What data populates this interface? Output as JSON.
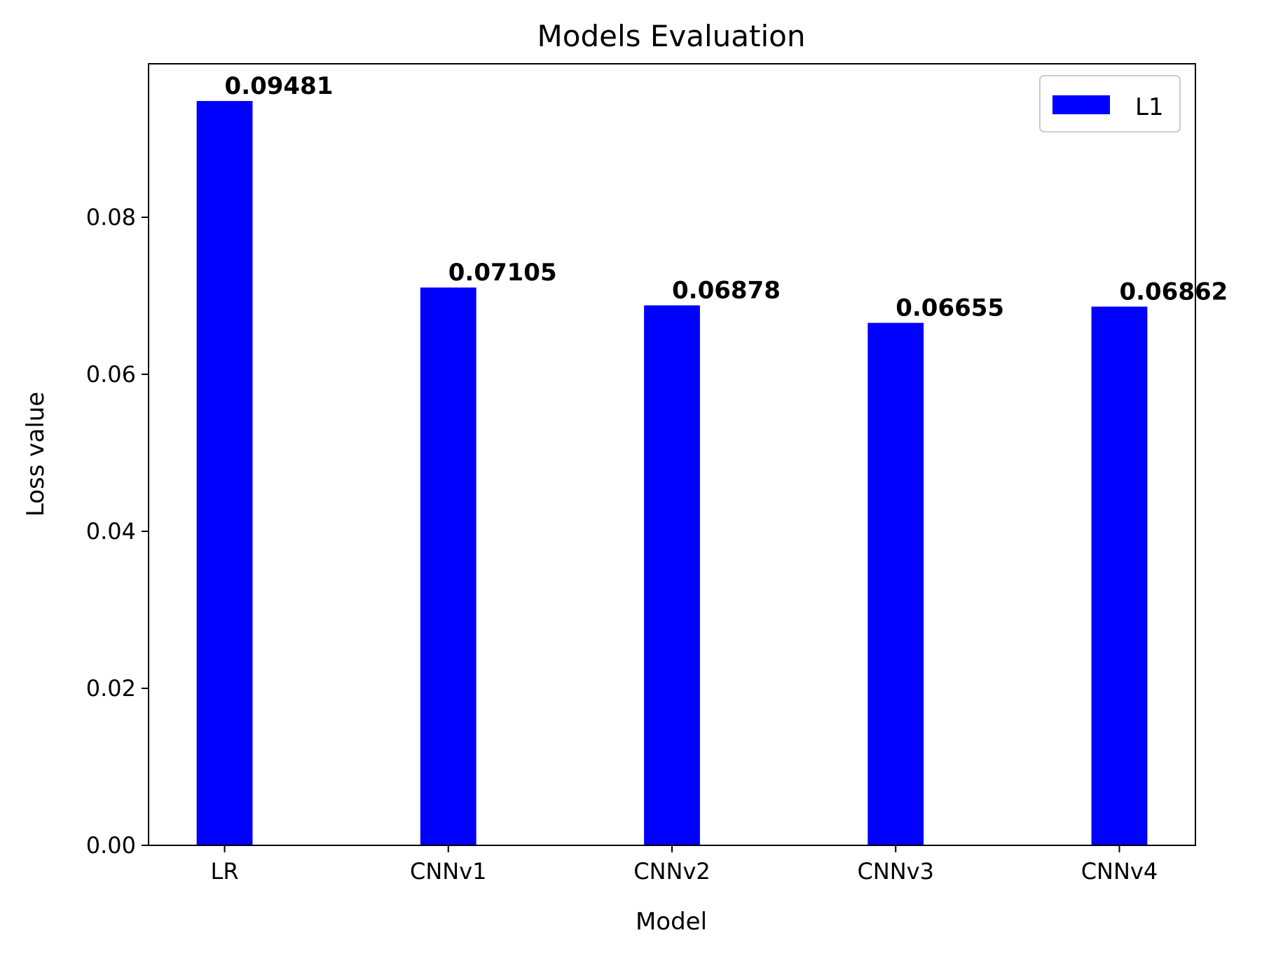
{
  "chart_data": {
    "type": "bar",
    "title": "Models Evaluation",
    "xlabel": "Model",
    "ylabel": "Loss value",
    "categories": [
      "LR",
      "CNNv1",
      "CNNv2",
      "CNNv3",
      "CNNv4"
    ],
    "series": [
      {
        "name": "L1",
        "color": "#0000ff",
        "values": [
          0.09481,
          0.07105,
          0.06878,
          0.06655,
          0.06862
        ]
      }
    ],
    "data_labels": [
      "0.09481",
      "0.07105",
      "0.06878",
      "0.06655",
      "0.06862"
    ],
    "ylim": [
      0,
      0.09955
    ],
    "yticks": [
      0.0,
      0.02,
      0.04,
      0.06,
      0.08
    ],
    "ytick_labels": [
      "0.00",
      "0.02",
      "0.04",
      "0.06",
      "0.08"
    ],
    "legend": {
      "position": "top-right",
      "entries": [
        "L1"
      ]
    },
    "grid": false
  }
}
